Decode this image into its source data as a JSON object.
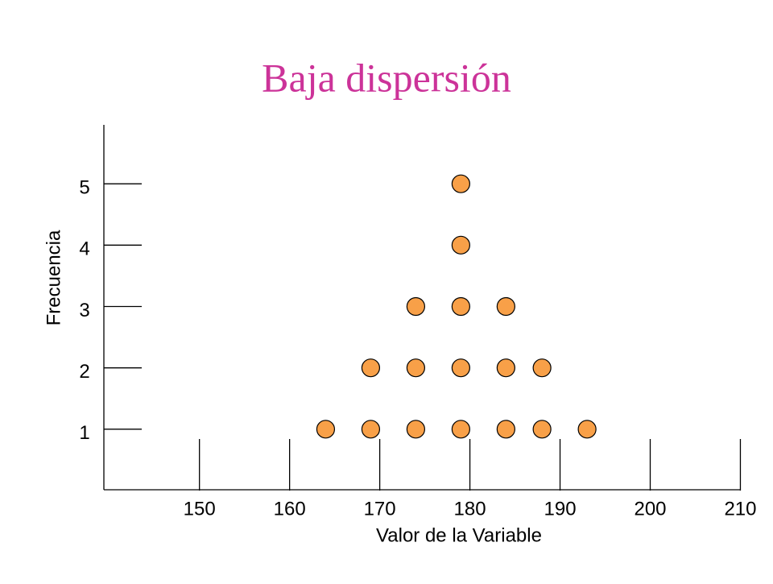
{
  "chart_data": {
    "type": "scatter",
    "title": "Baja dispersión",
    "x_label": "Valor de la Variable",
    "y_label": "Frecuencia",
    "x": [
      164,
      169,
      174,
      179,
      184,
      188,
      193,
      169,
      174,
      179,
      184,
      188,
      174,
      179,
      184,
      179,
      179
    ],
    "values": [
      1,
      1,
      1,
      1,
      1,
      1,
      1,
      2,
      2,
      2,
      2,
      2,
      3,
      3,
      3,
      4,
      5
    ],
    "color": "#f8a048",
    "xlim": [
      139.4,
      209.6
    ],
    "xticks": [
      150,
      160,
      170,
      180,
      190,
      200,
      210
    ],
    "ylim": [
      0,
      6
    ],
    "yticks": [
      1,
      2,
      3,
      4,
      5
    ]
  }
}
